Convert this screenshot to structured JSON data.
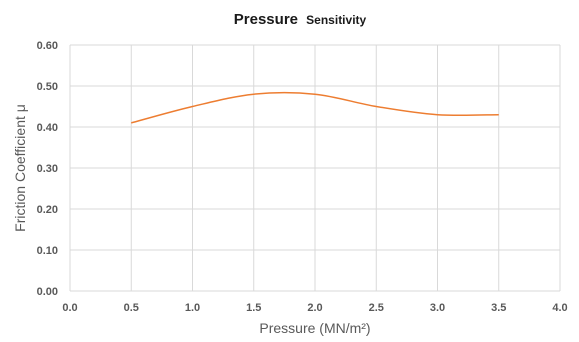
{
  "chart_data": {
    "type": "line",
    "title_main": "Pressure",
    "title_sub": "Sensitivity",
    "xlabel": "Pressure (MN/m²)",
    "ylabel": "Friction Coefficient μ",
    "xlim": [
      0.0,
      4.0
    ],
    "ylim": [
      0.0,
      0.6
    ],
    "x_ticks": [
      "0.0",
      "0.5",
      "1.0",
      "1.5",
      "2.0",
      "2.5",
      "3.0",
      "3.5",
      "4.0"
    ],
    "y_ticks": [
      "0.00",
      "0.10",
      "0.20",
      "0.30",
      "0.40",
      "0.50",
      "0.60"
    ],
    "grid": true,
    "series": [
      {
        "color": "#ED7D31",
        "x": [
          0.5,
          1.0,
          1.5,
          2.0,
          2.5,
          3.0,
          3.5
        ],
        "y": [
          0.41,
          0.45,
          0.48,
          0.48,
          0.45,
          0.43,
          0.43
        ]
      }
    ]
  }
}
